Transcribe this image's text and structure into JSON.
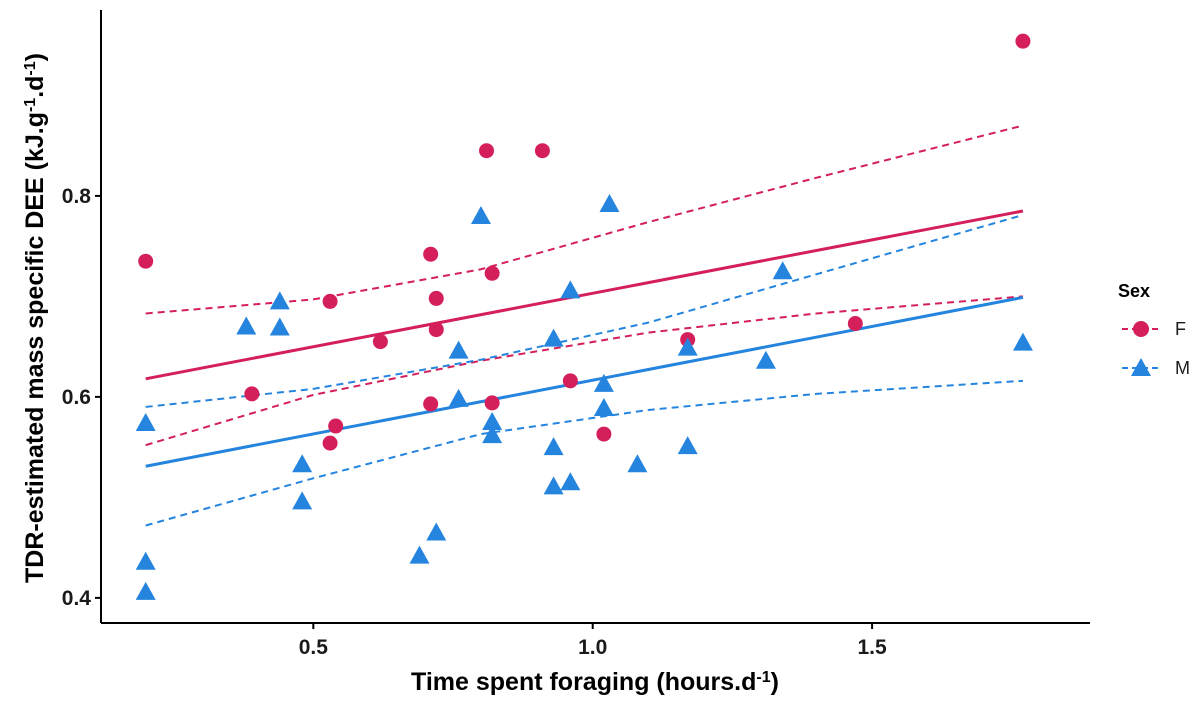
{
  "chart_data": {
    "type": "scatter",
    "title": "",
    "xlabel_main": "Time spent foraging (hours.d",
    "xlabel_sup": "-1",
    "xlabel_tail": ")",
    "ylabel_parts": [
      "TDR-estimated mass specific DEE (kJ.g",
      "-1",
      ".d",
      "-1",
      ")"
    ],
    "xlim": [
      0.12,
      1.89
    ],
    "ylim": [
      0.375,
      0.985
    ],
    "x_ticks": [
      0.5,
      1.0,
      1.5
    ],
    "x_tick_labels": [
      "0.5",
      "1.0",
      "1.5"
    ],
    "y_ticks": [
      0.4,
      0.6,
      0.8
    ],
    "y_tick_labels": [
      "0.4",
      "0.6",
      "0.8"
    ],
    "grid": false,
    "legend": {
      "title": "Sex",
      "position": "right"
    },
    "series": [
      {
        "name": "F",
        "color": "#D41F5B",
        "marker": "circle",
        "points": [
          [
            0.2,
            0.735
          ],
          [
            0.39,
            0.603
          ],
          [
            0.53,
            0.695
          ],
          [
            0.53,
            0.554
          ],
          [
            0.54,
            0.571
          ],
          [
            0.62,
            0.655
          ],
          [
            0.71,
            0.742
          ],
          [
            0.71,
            0.593
          ],
          [
            0.72,
            0.698
          ],
          [
            0.72,
            0.667
          ],
          [
            0.81,
            0.845
          ],
          [
            0.82,
            0.723
          ],
          [
            0.82,
            0.594
          ],
          [
            0.91,
            0.845
          ],
          [
            0.96,
            0.616
          ],
          [
            1.02,
            0.563
          ],
          [
            1.17,
            0.657
          ],
          [
            1.47,
            0.673
          ],
          [
            1.77,
            0.954
          ]
        ],
        "fit": {
          "x": [
            0.2,
            1.77
          ],
          "y": [
            0.618,
            0.785
          ]
        },
        "ci_upper": [
          [
            0.2,
            0.683
          ],
          [
            0.5,
            0.697
          ],
          [
            0.8,
            0.727
          ],
          [
            1.1,
            0.774
          ],
          [
            1.4,
            0.818
          ],
          [
            1.77,
            0.87
          ]
        ],
        "ci_lower": [
          [
            0.2,
            0.552
          ],
          [
            0.5,
            0.602
          ],
          [
            0.8,
            0.636
          ],
          [
            1.1,
            0.664
          ],
          [
            1.4,
            0.683
          ],
          [
            1.77,
            0.7
          ]
        ]
      },
      {
        "name": "M",
        "color": "#2585DE",
        "marker": "triangle",
        "points": [
          [
            0.2,
            0.574
          ],
          [
            0.2,
            0.436
          ],
          [
            0.2,
            0.406
          ],
          [
            0.38,
            0.67
          ],
          [
            0.44,
            0.695
          ],
          [
            0.44,
            0.669
          ],
          [
            0.48,
            0.533
          ],
          [
            0.48,
            0.496
          ],
          [
            0.69,
            0.442
          ],
          [
            0.72,
            0.465
          ],
          [
            0.76,
            0.646
          ],
          [
            0.76,
            0.598
          ],
          [
            0.8,
            0.78
          ],
          [
            0.82,
            0.575
          ],
          [
            0.82,
            0.562
          ],
          [
            0.93,
            0.658
          ],
          [
            0.93,
            0.55
          ],
          [
            0.93,
            0.511
          ],
          [
            0.96,
            0.706
          ],
          [
            0.96,
            0.515
          ],
          [
            1.02,
            0.613
          ],
          [
            1.02,
            0.589
          ],
          [
            1.03,
            0.792
          ],
          [
            1.08,
            0.533
          ],
          [
            1.17,
            0.649
          ],
          [
            1.17,
            0.551
          ],
          [
            1.31,
            0.636
          ],
          [
            1.34,
            0.725
          ],
          [
            1.77,
            0.654
          ]
        ],
        "fit": {
          "x": [
            0.2,
            1.77
          ],
          "y": [
            0.531,
            0.699
          ]
        },
        "ci_upper": [
          [
            0.2,
            0.59
          ],
          [
            0.5,
            0.608
          ],
          [
            0.8,
            0.637
          ],
          [
            1.1,
            0.674
          ],
          [
            1.4,
            0.722
          ],
          [
            1.77,
            0.781
          ]
        ],
        "ci_lower": [
          [
            0.2,
            0.472
          ],
          [
            0.5,
            0.519
          ],
          [
            0.8,
            0.563
          ],
          [
            1.1,
            0.587
          ],
          [
            1.4,
            0.603
          ],
          [
            1.77,
            0.616
          ]
        ]
      }
    ]
  }
}
